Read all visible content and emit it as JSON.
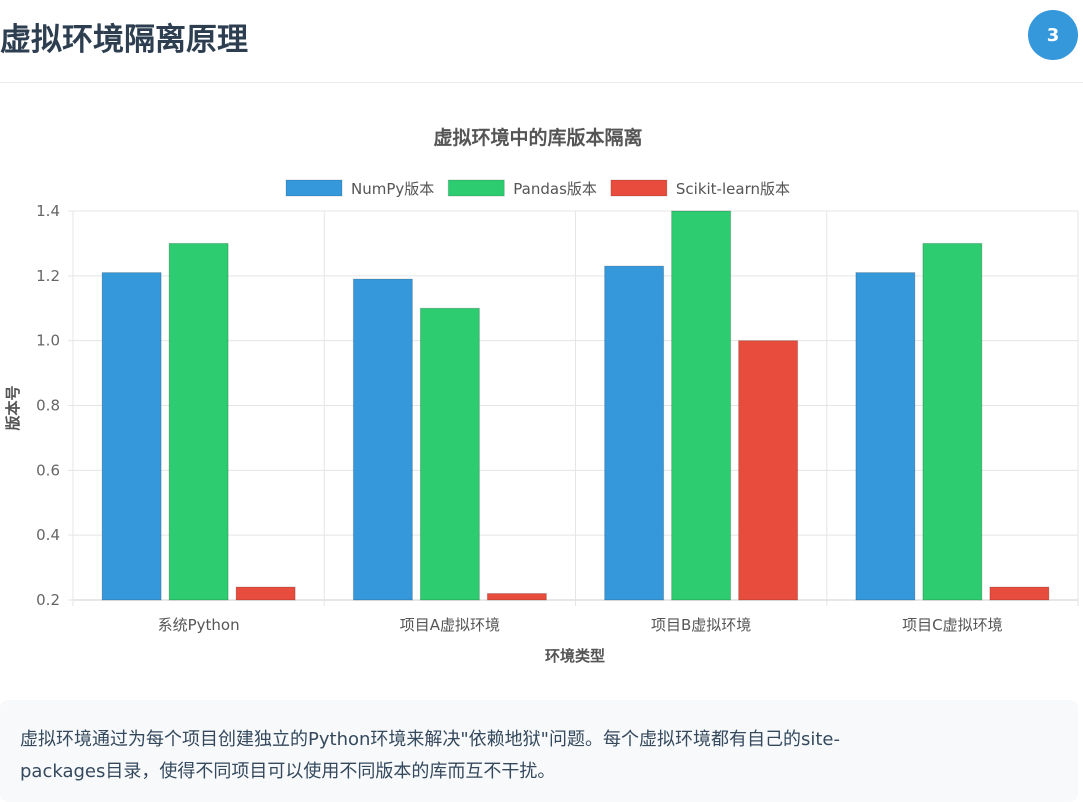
{
  "page": {
    "title": "虚拟环境隔离原理",
    "badge": "3"
  },
  "colors": {
    "numpy": "#3498db",
    "pandas": "#2ecc71",
    "sklearn": "#e74c3c"
  },
  "chart_data": {
    "type": "bar",
    "title": "虚拟环境中的库版本隔离",
    "xlabel": "环境类型",
    "ylabel": "版本号",
    "categories": [
      "系统Python",
      "项目A虚拟环境",
      "项目B虚拟环境",
      "项目C虚拟环境"
    ],
    "series": [
      {
        "name": "NumPy版本",
        "color": "#3498db",
        "values": [
          1.21,
          1.19,
          1.23,
          1.21
        ]
      },
      {
        "name": "Pandas版本",
        "color": "#2ecc71",
        "values": [
          1.3,
          1.1,
          1.4,
          1.3
        ]
      },
      {
        "name": "Scikit-learn版本",
        "color": "#e74c3c",
        "values": [
          0.24,
          0.22,
          1.0,
          0.24
        ]
      }
    ],
    "ylim": [
      0.2,
      1.4
    ],
    "yticks": [
      "0.2",
      "0.4",
      "0.6",
      "0.8",
      "1.0",
      "1.2",
      "1.4"
    ],
    "legend": "top",
    "grid": true
  },
  "description": {
    "line1": "虚拟环境通过为每个项目创建独立的Python环境来解决\"依赖地狱\"问题。每个虚拟环境都有自己的site-",
    "line2": "packages目录，使得不同项目可以使用不同版本的库而互不干扰。"
  }
}
